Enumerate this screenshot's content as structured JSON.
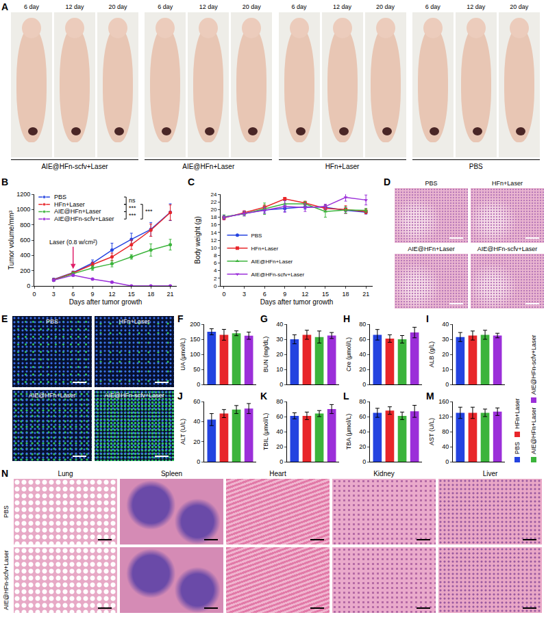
{
  "photos": {
    "panel": "A",
    "groups": [
      {
        "label": "AIE@HFn-scfv+Laser",
        "days": [
          "6 day",
          "12 day",
          "20 day"
        ]
      },
      {
        "label": "AIE@HFn+Laser",
        "days": [
          "6 day",
          "12 day",
          "20 day"
        ]
      },
      {
        "label": "HFn+Laser",
        "days": [
          "6 day",
          "12 day",
          "20 day"
        ]
      },
      {
        "label": "PBS",
        "days": [
          "6 day",
          "12 day",
          "20 day"
        ]
      }
    ]
  },
  "chart_data": [
    {
      "panel": "B",
      "type": "line",
      "x_label": "Days after tumor growth",
      "y_label": "Tumor volume/mm³",
      "x": [
        3,
        6,
        9,
        12,
        15,
        18,
        21
      ],
      "xlim": [
        0,
        22
      ],
      "xticks": [
        0,
        3,
        6,
        9,
        12,
        15,
        18,
        21
      ],
      "ylim": [
        0,
        1200
      ],
      "yticks": [
        0,
        200,
        400,
        600,
        800,
        1000,
        1200
      ],
      "grid": false,
      "legend": "top left",
      "series": [
        {
          "name": "PBS",
          "color": "#2443e0",
          "marker": "circle",
          "values": [
            85,
            175,
            300,
            470,
            610,
            740,
            965
          ],
          "errors": [
            15,
            20,
            40,
            90,
            80,
            90,
            110
          ]
        },
        {
          "name": "HFn+Laser",
          "color": "#e8262a",
          "marker": "circle",
          "values": [
            80,
            170,
            280,
            380,
            540,
            730,
            960
          ],
          "errors": [
            10,
            20,
            30,
            50,
            60,
            80,
            100
          ]
        },
        {
          "name": "AIE@HFn+Laser",
          "color": "#3cb43c",
          "marker": "circle",
          "values": [
            75,
            160,
            235,
            290,
            380,
            470,
            540
          ],
          "errors": [
            10,
            20,
            30,
            40,
            30,
            80,
            70
          ]
        },
        {
          "name": "AIE@HFn-scfv+Laser",
          "color": "#9b2fd9",
          "marker": "circle",
          "values": [
            75,
            140,
            90,
            50,
            0,
            0,
            0
          ],
          "errors": [
            10,
            15,
            10,
            10,
            0,
            0,
            0
          ]
        }
      ],
      "annotations": [
        {
          "text": "Laser (0.8 w/cm²)",
          "x": 6
        }
      ],
      "comparisons": [
        {
          "a": "PBS",
          "b": "HFn+Laser",
          "label": "ns"
        },
        {
          "a": "HFn+Laser",
          "b": "AIE@HFn+Laser",
          "label": "***"
        },
        {
          "a": "AIE@HFn+Laser",
          "b": "AIE@HFn-scfv+Laser",
          "label": "***"
        },
        {
          "a": "HFn+Laser",
          "b": "AIE@HFn-scfv+Laser",
          "label": "***"
        }
      ]
    },
    {
      "panel": "C",
      "type": "line",
      "x_label": "Days after tumor growth",
      "y_label": "Body weight (g)",
      "x": [
        0,
        3,
        6,
        9,
        12,
        15,
        18,
        21
      ],
      "xlim": [
        -0.5,
        22
      ],
      "xticks": [
        0,
        3,
        6,
        9,
        12,
        15,
        18,
        21
      ],
      "ylim": [
        0,
        24
      ],
      "yticks": [
        0,
        2,
        4,
        6,
        8,
        10,
        12,
        14,
        16,
        18,
        20,
        22,
        24
      ],
      "grid": false,
      "legend": "bottom left",
      "series": [
        {
          "name": "PBS",
          "color": "#2443e0",
          "marker": "circle",
          "values": [
            18,
            19,
            19.9,
            20.3,
            20.7,
            20.6,
            19.8,
            19.3
          ],
          "errors": [
            0.5,
            0.6,
            0.8,
            0.8,
            0.6,
            0.7,
            0.8,
            0.5
          ]
        },
        {
          "name": "HFn+Laser",
          "color": "#e8262a",
          "marker": "square",
          "values": [
            17.8,
            19.2,
            20.6,
            22.8,
            21.7,
            20.3,
            20.0,
            19.5
          ],
          "errors": [
            0.5,
            0.5,
            0.6,
            0.4,
            0.5,
            0.8,
            1.0,
            0.6
          ]
        },
        {
          "name": "AIE@HFn+Laser",
          "color": "#3cb43c",
          "marker": "triangle-up",
          "values": [
            18.1,
            18.9,
            20.2,
            21.5,
            21.5,
            19.5,
            19.9,
            19.8
          ],
          "errors": [
            0.5,
            0.6,
            1.5,
            0.8,
            0.6,
            1.5,
            0.8,
            0.5
          ]
        },
        {
          "name": "AIE@HFn-scfv+Laser",
          "color": "#9b2fd9",
          "marker": "triangle-down",
          "values": [
            17.9,
            19.0,
            19.8,
            20.8,
            20.5,
            20.8,
            23.2,
            22.5
          ],
          "errors": [
            0.5,
            0.6,
            0.8,
            1.5,
            1.0,
            0.6,
            1.0,
            1.3
          ]
        }
      ]
    },
    {
      "panel": "F",
      "type": "bar",
      "y_label": "UA (μmol/L)",
      "categories": [
        "PBS",
        "HFn+Laser",
        "AIE@HFn+Laser",
        "AIE@HFn-scfv+Laser"
      ],
      "colors": [
        "#2443e0",
        "#e8262a",
        "#3cb43c",
        "#9b2fd9"
      ],
      "values": [
        175,
        165,
        170,
        162
      ],
      "errors": [
        10,
        18,
        8,
        12
      ],
      "ylim": [
        0,
        200
      ],
      "yticks": [
        0,
        50,
        100,
        150,
        200
      ],
      "tick_labels": "y",
      "legend": "right"
    },
    {
      "panel": "G",
      "type": "bar",
      "y_label": "BUN (mg/dL)",
      "categories": [
        "PBS",
        "HFn+Laser",
        "AIE@HFn+Laser",
        "AIE@HFn-scfv+Laser"
      ],
      "colors": [
        "#2443e0",
        "#e8262a",
        "#3cb43c",
        "#9b2fd9"
      ],
      "values": [
        30,
        33,
        31.5,
        32.5
      ],
      "errors": [
        3,
        3,
        4,
        2
      ],
      "ylim": [
        0,
        40
      ],
      "yticks": [
        0,
        10,
        20,
        30,
        40
      ],
      "tick_labels": "y",
      "legend": "right"
    },
    {
      "panel": "H",
      "type": "bar",
      "y_label": "Cre (μmol/L)",
      "categories": [
        "PBS",
        "HFn+Laser",
        "AIE@HFn+Laser",
        "AIE@HFn-scfv+Laser"
      ],
      "colors": [
        "#2443e0",
        "#e8262a",
        "#3cb43c",
        "#9b2fd9"
      ],
      "values": [
        66,
        61,
        60,
        69
      ],
      "errors": [
        7,
        5,
        5,
        7
      ],
      "ylim": [
        0,
        80
      ],
      "yticks": [
        0,
        20,
        40,
        60,
        80
      ],
      "tick_labels": "y",
      "legend": "right"
    },
    {
      "panel": "I",
      "type": "bar",
      "y_label": "ALB (g/L)",
      "categories": [
        "PBS",
        "HFn+Laser",
        "AIE@HFn+Laser",
        "AIE@HFn-scfv+Laser"
      ],
      "colors": [
        "#2443e0",
        "#e8262a",
        "#3cb43c",
        "#9b2fd9"
      ],
      "values": [
        31.5,
        32.5,
        33,
        32.5
      ],
      "errors": [
        3,
        3,
        3,
        1.5
      ],
      "ylim": [
        0,
        40
      ],
      "yticks": [
        0,
        10,
        20,
        30,
        40
      ],
      "tick_labels": "y",
      "legend": "right"
    },
    {
      "panel": "J",
      "type": "bar",
      "y_label": "ALT (U/L)",
      "categories": [
        "PBS",
        "HFn+Laser",
        "AIE@HFn+Laser",
        "AIE@HFn-scfv+Laser"
      ],
      "colors": [
        "#2443e0",
        "#e8262a",
        "#3cb43c",
        "#9b2fd9"
      ],
      "values": [
        42,
        48,
        52,
        53
      ],
      "errors": [
        6,
        4,
        4,
        5
      ],
      "ylim": [
        0,
        60
      ],
      "yticks": [
        0,
        20,
        40,
        60
      ],
      "tick_labels": "y",
      "legend": "right"
    },
    {
      "panel": "K",
      "type": "bar",
      "y_label": "TBIL (μmol/L)",
      "categories": [
        "PBS",
        "HFn+Laser",
        "AIE@HFn+Laser",
        "AIE@HFn-scfv+Laser"
      ],
      "colors": [
        "#2443e0",
        "#e8262a",
        "#3cb43c",
        "#9b2fd9"
      ],
      "values": [
        61,
        61,
        64,
        70
      ],
      "errors": [
        4,
        5,
        4,
        6
      ],
      "ylim": [
        0,
        80
      ],
      "yticks": [
        0,
        20,
        40,
        60,
        80
      ],
      "tick_labels": "y",
      "legend": "right"
    },
    {
      "panel": "L",
      "type": "bar",
      "y_label": "TBA (μmol/L)",
      "categories": [
        "PBS",
        "HFn+Laser",
        "AIE@HFn+Laser",
        "AIE@HFn-scfv+Laser"
      ],
      "colors": [
        "#2443e0",
        "#e8262a",
        "#3cb43c",
        "#9b2fd9"
      ],
      "values": [
        65,
        68,
        61,
        67
      ],
      "errors": [
        6,
        5,
        5,
        8
      ],
      "ylim": [
        0,
        80
      ],
      "yticks": [
        0,
        20,
        40,
        60,
        80
      ],
      "tick_labels": "y",
      "legend": "right"
    },
    {
      "panel": "M",
      "type": "bar",
      "y_label": "AST (U/L)",
      "categories": [
        "PBS",
        "HFn+Laser",
        "AIE@HFn+Laser",
        "AIE@HFn-scfv+Laser"
      ],
      "colors": [
        "#2443e0",
        "#e8262a",
        "#3cb43c",
        "#9b2fd9"
      ],
      "values": [
        130,
        130,
        130,
        133
      ],
      "errors": [
        15,
        15,
        10,
        10
      ],
      "ylim": [
        0,
        160
      ],
      "yticks": [
        0,
        40,
        80,
        120,
        160
      ],
      "tick_labels": "y",
      "legend": "right"
    }
  ],
  "he_tumor": {
    "panel": "D",
    "labels": [
      "PBS",
      "HFn+Laser",
      "AIE@HFn+Laser",
      "AIE@HFn-scfv+Laser"
    ]
  },
  "fluorescence": {
    "panel": "E",
    "labels": [
      "PBS",
      "HFn+Laser",
      "AIE@HFn+Laser",
      "AIE@HFn-scfv+Laser"
    ]
  },
  "organs": {
    "panel": "N",
    "columns": [
      "Lung",
      "Spleen",
      "Heart",
      "Kidney",
      "Liver"
    ],
    "rows": [
      "PBS",
      "AIE@HFn-scfv+Laser"
    ]
  }
}
